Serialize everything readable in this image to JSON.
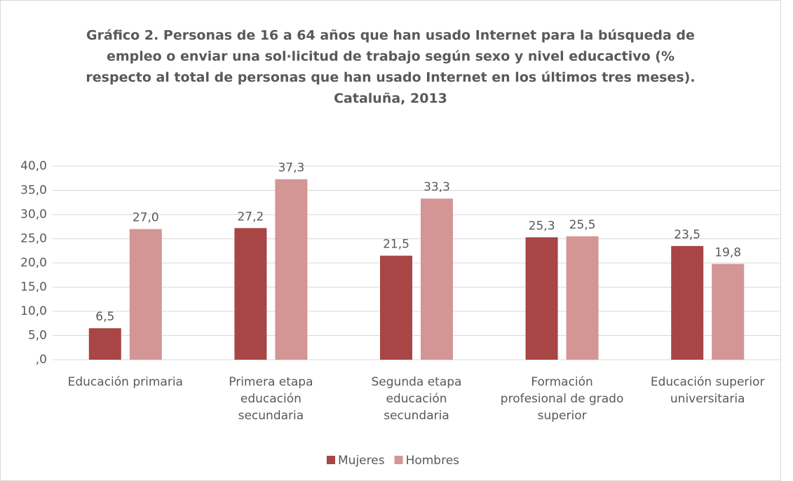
{
  "chart_data": {
    "type": "bar",
    "title": [
      "Gráfico 2. Personas de 16 a 64 años que han usado Internet para la búsqueda de",
      "empleo o enviar una sol·licitud de trabajo según sexo y nivel educactivo (%",
      "respecto al total de personas que han usado Internet en los últimos tres meses).",
      "Cataluña, 2013"
    ],
    "categories": [
      "Educación primaria",
      "Primera etapa educación secundaria",
      "Segunda etapa educación secundaria",
      "Formación profesional de grado superior",
      "Educación superior universitaria"
    ],
    "series": [
      {
        "name": "Mujeres",
        "color": "#a84545",
        "values": [
          6.5,
          27.2,
          21.5,
          25.3,
          23.5
        ],
        "value_labels": [
          "6,5",
          "27,2",
          "21,5",
          "25,3",
          "23,5"
        ]
      },
      {
        "name": "Hombres",
        "color": "#d49595",
        "values": [
          27.0,
          37.3,
          33.3,
          25.5,
          19.8
        ],
        "value_labels": [
          "27,0",
          "37,3",
          "33,3",
          "25,5",
          "19,8"
        ]
      }
    ],
    "ylim": [
      0,
      40
    ],
    "yticks": [
      {
        "value": 0,
        "label": ",0"
      },
      {
        "value": 5,
        "label": "5,0"
      },
      {
        "value": 10,
        "label": "10,0"
      },
      {
        "value": 15,
        "label": "15,0"
      },
      {
        "value": 20,
        "label": "20,0"
      },
      {
        "value": 25,
        "label": "25,0"
      },
      {
        "value": 30,
        "label": "30,0"
      },
      {
        "value": 35,
        "label": "35,0"
      },
      {
        "value": 40,
        "label": "40,0"
      }
    ],
    "grid": true,
    "legend": "bottom"
  }
}
